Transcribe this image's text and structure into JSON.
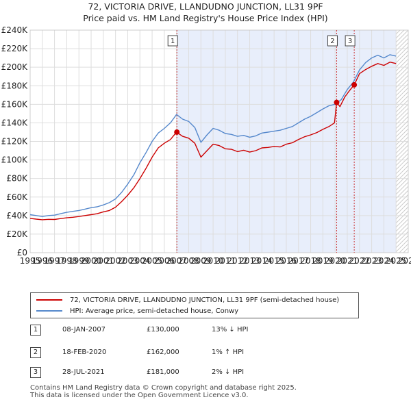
{
  "chart_data": {
    "type": "line",
    "title": "72, VICTORIA DRIVE, LLANDUDNO JUNCTION, LL31 9PF",
    "subtitle": "Price paid vs. HM Land Registry's House Price Index (HPI)",
    "xlim": [
      1995,
      2026
    ],
    "ylim": [
      0,
      240000
    ],
    "x_ticks": [
      "1995",
      "1996",
      "1997",
      "1998",
      "1999",
      "2000",
      "2001",
      "2002",
      "2003",
      "2004",
      "2005",
      "2006",
      "2007",
      "2008",
      "2009",
      "2010",
      "2011",
      "2012",
      "2013",
      "2014",
      "2015",
      "2016",
      "2017",
      "2018",
      "2019",
      "2020",
      "2021",
      "2022",
      "2023",
      "2024",
      "2025",
      "2026"
    ],
    "y_ticks": [
      {
        "value": 0,
        "label": "£0"
      },
      {
        "value": 20000,
        "label": "£20K"
      },
      {
        "value": 40000,
        "label": "£40K"
      },
      {
        "value": 60000,
        "label": "£60K"
      },
      {
        "value": 80000,
        "label": "£80K"
      },
      {
        "value": 100000,
        "label": "£100K"
      },
      {
        "value": 120000,
        "label": "£120K"
      },
      {
        "value": 140000,
        "label": "£140K"
      },
      {
        "value": 160000,
        "label": "£160K"
      },
      {
        "value": 180000,
        "label": "£180K"
      },
      {
        "value": 200000,
        "label": "£200K"
      },
      {
        "value": 220000,
        "label": "£220K"
      },
      {
        "value": 240000,
        "label": "£240K"
      }
    ],
    "grid": true,
    "shaded_period": [
      2007.03,
      2025.0
    ],
    "series": [
      {
        "name": "72, VICTORIA DRIVE, LLANDUDNO JUNCTION, LL31 9PF (semi-detached house)",
        "color": "#cc0000",
        "points": [
          [
            1995.0,
            37000
          ],
          [
            1995.5,
            36200
          ],
          [
            1996.0,
            35500
          ],
          [
            1996.5,
            36000
          ],
          [
            1997.0,
            35800
          ],
          [
            1997.5,
            36800
          ],
          [
            1998.0,
            37600
          ],
          [
            1998.5,
            38200
          ],
          [
            1999.0,
            39000
          ],
          [
            1999.5,
            40000
          ],
          [
            2000.0,
            41000
          ],
          [
            2000.5,
            42000
          ],
          [
            2001.0,
            44000
          ],
          [
            2001.5,
            45500
          ],
          [
            2002.0,
            49000
          ],
          [
            2002.5,
            55000
          ],
          [
            2003.0,
            62000
          ],
          [
            2003.5,
            70000
          ],
          [
            2004.0,
            80000
          ],
          [
            2004.5,
            91000
          ],
          [
            2005.0,
            103000
          ],
          [
            2005.5,
            113000
          ],
          [
            2006.0,
            118000
          ],
          [
            2006.5,
            122000
          ],
          [
            2007.0,
            130000
          ],
          [
            2007.5,
            125500
          ],
          [
            2008.0,
            123500
          ],
          [
            2008.5,
            118000
          ],
          [
            2009.0,
            103000
          ],
          [
            2009.5,
            110000
          ],
          [
            2010.0,
            117000
          ],
          [
            2010.5,
            115500
          ],
          [
            2011.0,
            112000
          ],
          [
            2011.5,
            111500
          ],
          [
            2012.0,
            109000
          ],
          [
            2012.5,
            110500
          ],
          [
            2013.0,
            108500
          ],
          [
            2013.5,
            110000
          ],
          [
            2014.0,
            113000
          ],
          [
            2014.5,
            113500
          ],
          [
            2015.0,
            114500
          ],
          [
            2015.5,
            114000
          ],
          [
            2016.0,
            117000
          ],
          [
            2016.5,
            118500
          ],
          [
            2017.0,
            122000
          ],
          [
            2017.5,
            125000
          ],
          [
            2018.0,
            127000
          ],
          [
            2018.5,
            129500
          ],
          [
            2019.0,
            133000
          ],
          [
            2019.5,
            136000
          ],
          [
            2019.95,
            140000
          ],
          [
            2020.13,
            162000
          ],
          [
            2020.4,
            157500
          ],
          [
            2020.8,
            168000
          ],
          [
            2021.2,
            175000
          ],
          [
            2021.57,
            181000
          ],
          [
            2022.0,
            193000
          ],
          [
            2022.5,
            197500
          ],
          [
            2023.0,
            201000
          ],
          [
            2023.5,
            204000
          ],
          [
            2024.0,
            202000
          ],
          [
            2024.5,
            205500
          ],
          [
            2025.0,
            204000
          ]
        ]
      },
      {
        "name": "HPI: Average price, semi-detached house, Conwy",
        "color": "#5588cc",
        "points": [
          [
            1995.0,
            41000
          ],
          [
            1995.5,
            40000
          ],
          [
            1996.0,
            39000
          ],
          [
            1996.5,
            40000
          ],
          [
            1997.0,
            40500
          ],
          [
            1997.5,
            42000
          ],
          [
            1998.0,
            43500
          ],
          [
            1998.5,
            44500
          ],
          [
            1999.0,
            45500
          ],
          [
            1999.5,
            47000
          ],
          [
            2000.0,
            48500
          ],
          [
            2000.5,
            49500
          ],
          [
            2001.0,
            51500
          ],
          [
            2001.5,
            54000
          ],
          [
            2002.0,
            58000
          ],
          [
            2002.5,
            65000
          ],
          [
            2003.0,
            74000
          ],
          [
            2003.5,
            84000
          ],
          [
            2004.0,
            97000
          ],
          [
            2004.5,
            108000
          ],
          [
            2005.0,
            120000
          ],
          [
            2005.5,
            129000
          ],
          [
            2006.0,
            134000
          ],
          [
            2006.5,
            140000
          ],
          [
            2007.0,
            149000
          ],
          [
            2007.5,
            144000
          ],
          [
            2008.0,
            141500
          ],
          [
            2008.5,
            135000
          ],
          [
            2009.0,
            119000
          ],
          [
            2009.5,
            127000
          ],
          [
            2010.0,
            134000
          ],
          [
            2010.5,
            132000
          ],
          [
            2011.0,
            128500
          ],
          [
            2011.5,
            127500
          ],
          [
            2012.0,
            125500
          ],
          [
            2012.5,
            126500
          ],
          [
            2013.0,
            124500
          ],
          [
            2013.5,
            126000
          ],
          [
            2014.0,
            129000
          ],
          [
            2014.5,
            130000
          ],
          [
            2015.0,
            131000
          ],
          [
            2015.5,
            132000
          ],
          [
            2016.0,
            134000
          ],
          [
            2016.5,
            136000
          ],
          [
            2017.0,
            140000
          ],
          [
            2017.5,
            144000
          ],
          [
            2018.0,
            147000
          ],
          [
            2018.5,
            151000
          ],
          [
            2019.0,
            155000
          ],
          [
            2019.5,
            158500
          ],
          [
            2020.0,
            160000
          ],
          [
            2020.5,
            165000
          ],
          [
            2021.0,
            176000
          ],
          [
            2021.5,
            184000
          ],
          [
            2022.0,
            197000
          ],
          [
            2022.5,
            205000
          ],
          [
            2023.0,
            210000
          ],
          [
            2023.5,
            213000
          ],
          [
            2024.0,
            210000
          ],
          [
            2024.5,
            213500
          ],
          [
            2025.0,
            212000
          ]
        ]
      }
    ],
    "sales": [
      {
        "id": "1",
        "x": 2007.03,
        "price": 130000,
        "date": "08-JAN-2007",
        "price_label": "£130,000",
        "hpi": "13% ↓ HPI"
      },
      {
        "id": "2",
        "x": 2020.13,
        "price": 162000,
        "date": "18-FEB-2020",
        "price_label": "£162,000",
        "hpi": "1% ↑ HPI"
      },
      {
        "id": "3",
        "x": 2021.57,
        "price": 181000,
        "date": "28-JUL-2021",
        "price_label": "£181,000",
        "hpi": "2% ↓ HPI"
      }
    ]
  },
  "legend": {
    "sales_label": "72, VICTORIA DRIVE, LLANDUDNO JUNCTION, LL31 9PF (semi-detached house)",
    "hpi_label": "HPI: Average price, semi-detached house, Conwy"
  },
  "footer": {
    "line1": "Contains HM Land Registry data © Crown copyright and database right 2025.",
    "line2": "This data is licensed under the Open Government Licence v3.0."
  }
}
